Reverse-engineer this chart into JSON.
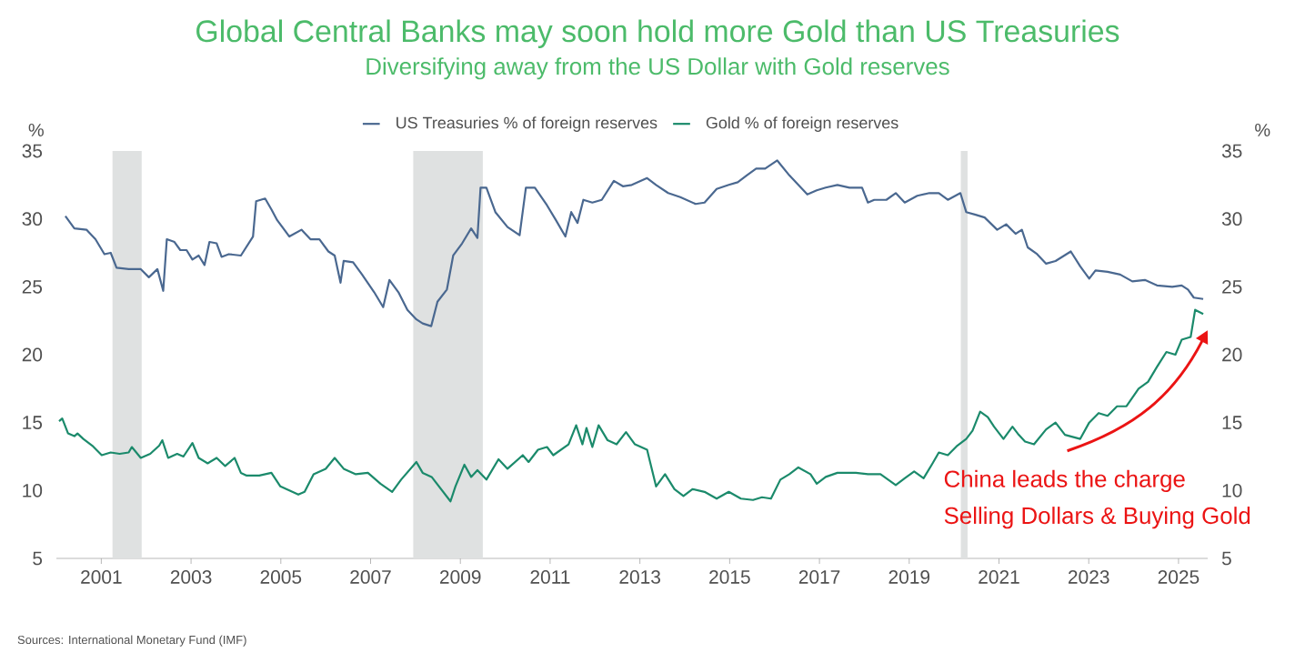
{
  "chart_data": {
    "type": "line",
    "title": "Global Central Banks may soon hold more Gold than US Treasuries",
    "subtitle": "Diversifying away from the US Dollar with Gold reserves",
    "ylabel": "%",
    "y2label": "%",
    "series": [
      {
        "name": "US Treasuries % of foreign reserves",
        "color": "#4a6890",
        "x": [
          2000.2,
          2000.4,
          2000.67,
          2000.87,
          2001.07,
          2001.21,
          2001.34,
          2001.61,
          2001.88,
          2002.06,
          2002.25,
          2002.38,
          2002.46,
          2002.63,
          2002.76,
          2002.9,
          2003.03,
          2003.17,
          2003.3,
          2003.41,
          2003.57,
          2003.68,
          2003.84,
          2004.11,
          2004.38,
          2004.45,
          2004.65,
          2004.79,
          2004.92,
          2005.19,
          2005.46,
          2005.66,
          2005.86,
          2006.06,
          2006.2,
          2006.33,
          2006.4,
          2006.61,
          2006.81,
          2007.08,
          2007.28,
          2007.42,
          2007.62,
          2007.82,
          2008.02,
          2008.16,
          2008.35,
          2008.49,
          2008.7,
          2008.84,
          2009.04,
          2009.24,
          2009.38,
          2009.45,
          2009.58,
          2009.78,
          2010.05,
          2010.32,
          2010.46,
          2010.66,
          2010.93,
          2011.13,
          2011.34,
          2011.47,
          2011.61,
          2011.74,
          2011.94,
          2012.15,
          2012.42,
          2012.62,
          2012.82,
          2013.16,
          2013.36,
          2013.63,
          2013.9,
          2014.24,
          2014.44,
          2014.71,
          2014.98,
          2015.18,
          2015.38,
          2015.59,
          2015.79,
          2016.06,
          2016.33,
          2016.73,
          2016.94,
          2017.14,
          2017.4,
          2017.67,
          2017.95,
          2018.08,
          2018.22,
          2018.49,
          2018.7,
          2018.9,
          2019.18,
          2019.45,
          2019.66,
          2019.86,
          2020.14,
          2020.27,
          2020.48,
          2020.68,
          2020.96,
          2021.16,
          2021.37,
          2021.51,
          2021.64,
          2021.85,
          2022.05,
          2022.26,
          2022.6,
          2022.81,
          2023.01,
          2023.15,
          2023.42,
          2023.7,
          2023.97,
          2024.25,
          2024.52,
          2024.86,
          2025.07,
          2025.21,
          2025.34,
          2025.55
        ],
        "values": [
          30.2,
          29.3,
          29.2,
          28.5,
          27.4,
          27.5,
          26.4,
          26.3,
          26.3,
          25.7,
          26.3,
          24.7,
          28.5,
          28.3,
          27.7,
          27.7,
          27.0,
          27.3,
          26.6,
          28.3,
          28.2,
          27.2,
          27.4,
          27.3,
          28.7,
          31.3,
          31.5,
          30.7,
          29.9,
          28.7,
          29.2,
          28.5,
          28.5,
          27.6,
          27.3,
          25.3,
          26.9,
          26.8,
          25.9,
          24.6,
          23.5,
          25.5,
          24.6,
          23.3,
          22.6,
          22.3,
          22.1,
          23.9,
          24.8,
          27.3,
          28.2,
          29.3,
          28.6,
          32.3,
          32.3,
          30.5,
          29.4,
          28.8,
          32.3,
          32.3,
          31.0,
          29.9,
          28.7,
          30.5,
          29.7,
          31.4,
          31.2,
          31.4,
          32.8,
          32.4,
          32.5,
          33.0,
          32.5,
          31.9,
          31.6,
          31.1,
          31.2,
          32.2,
          32.5,
          32.7,
          33.2,
          33.7,
          33.7,
          34.3,
          33.2,
          31.8,
          32.1,
          32.3,
          32.5,
          32.3,
          32.3,
          31.2,
          31.4,
          31.4,
          31.9,
          31.2,
          31.7,
          31.9,
          31.9,
          31.4,
          31.9,
          30.5,
          30.3,
          30.1,
          29.2,
          29.6,
          28.9,
          29.2,
          27.9,
          27.4,
          26.7,
          26.9,
          27.6,
          26.5,
          25.6,
          26.2,
          26.1,
          25.9,
          25.4,
          25.5,
          25.1,
          25.0,
          25.1,
          24.8,
          24.2,
          24.1
        ]
      },
      {
        "name": "Gold % of foreign reserves",
        "color": "#1b8a6b",
        "x": [
          2000.06,
          2000.13,
          2000.26,
          2000.4,
          2000.47,
          2000.6,
          2000.8,
          2001.01,
          2001.21,
          2001.41,
          2001.61,
          2001.68,
          2001.88,
          2002.09,
          2002.29,
          2002.36,
          2002.49,
          2002.69,
          2002.83,
          2003.03,
          2003.17,
          2003.37,
          2003.57,
          2003.76,
          2003.97,
          2004.11,
          2004.24,
          2004.52,
          2004.79,
          2004.99,
          2005.19,
          2005.39,
          2005.53,
          2005.73,
          2006.0,
          2006.2,
          2006.4,
          2006.67,
          2006.94,
          2007.22,
          2007.48,
          2007.68,
          2008.02,
          2008.16,
          2008.36,
          2008.57,
          2008.78,
          2008.89,
          2009.09,
          2009.24,
          2009.38,
          2009.58,
          2009.85,
          2010.05,
          2010.39,
          2010.52,
          2010.73,
          2010.93,
          2011.07,
          2011.41,
          2011.58,
          2011.72,
          2011.81,
          2011.94,
          2012.08,
          2012.28,
          2012.48,
          2012.69,
          2012.89,
          2013.16,
          2013.36,
          2013.56,
          2013.77,
          2013.97,
          2014.17,
          2014.44,
          2014.71,
          2014.98,
          2015.25,
          2015.52,
          2015.72,
          2015.92,
          2016.13,
          2016.33,
          2016.53,
          2016.8,
          2016.94,
          2017.14,
          2017.4,
          2017.81,
          2018.08,
          2018.36,
          2018.7,
          2018.9,
          2019.11,
          2019.32,
          2019.52,
          2019.66,
          2019.86,
          2020.07,
          2020.27,
          2020.41,
          2020.58,
          2020.75,
          2020.89,
          2021.1,
          2021.3,
          2021.44,
          2021.58,
          2021.78,
          2022.05,
          2022.26,
          2022.47,
          2022.81,
          2023.01,
          2023.22,
          2023.42,
          2023.63,
          2023.84,
          2024.11,
          2024.32,
          2024.52,
          2024.73,
          2024.93,
          2025.07,
          2025.27,
          2025.37,
          2025.55
        ],
        "values": [
          15.1,
          15.3,
          14.2,
          14.0,
          14.2,
          13.8,
          13.3,
          12.6,
          12.8,
          12.7,
          12.8,
          13.2,
          12.4,
          12.7,
          13.3,
          13.7,
          12.4,
          12.7,
          12.5,
          13.5,
          12.4,
          12.0,
          12.4,
          11.8,
          12.4,
          11.3,
          11.1,
          11.1,
          11.3,
          10.3,
          10.0,
          9.7,
          9.9,
          11.2,
          11.6,
          12.4,
          11.6,
          11.2,
          11.3,
          10.5,
          9.9,
          10.8,
          12.1,
          11.3,
          11.0,
          10.1,
          9.2,
          10.3,
          11.9,
          11.0,
          11.5,
          10.8,
          12.3,
          11.6,
          12.6,
          12.1,
          13.0,
          13.2,
          12.6,
          13.4,
          14.8,
          13.4,
          14.6,
          13.2,
          14.8,
          13.7,
          13.4,
          14.3,
          13.4,
          13.0,
          10.3,
          11.2,
          10.1,
          9.6,
          10.1,
          9.9,
          9.4,
          9.9,
          9.4,
          9.3,
          9.5,
          9.4,
          10.8,
          11.2,
          11.7,
          11.2,
          10.5,
          11.0,
          11.3,
          11.3,
          11.2,
          11.2,
          10.4,
          10.9,
          11.4,
          10.9,
          12.0,
          12.8,
          12.6,
          13.3,
          13.8,
          14.4,
          15.8,
          15.4,
          14.7,
          13.8,
          14.7,
          14.1,
          13.6,
          13.4,
          14.5,
          15.0,
          14.1,
          13.8,
          15.0,
          15.7,
          15.5,
          16.2,
          16.2,
          17.5,
          18.0,
          19.1,
          20.2,
          20.0,
          21.1,
          21.3,
          23.3,
          23.0
        ]
      }
    ],
    "xlim": [
      2000,
      2025.65
    ],
    "xticks": [
      2001,
      2003,
      2005,
      2007,
      2009,
      2011,
      2013,
      2015,
      2017,
      2019,
      2021,
      2023,
      2025
    ],
    "ylim": [
      5,
      35
    ],
    "yticks": [
      5,
      10,
      15,
      20,
      25,
      30,
      35
    ],
    "y2lim": [
      5,
      35
    ],
    "y2ticks": [
      5,
      10,
      15,
      20,
      25,
      30,
      35
    ],
    "bands": [
      {
        "axis": "x",
        "from": 2001.25,
        "to": 2001.9,
        "color": "#dfe1e1"
      },
      {
        "axis": "x",
        "from": 2007.95,
        "to": 2009.5,
        "color": "#dfe1e1"
      },
      {
        "axis": "x",
        "from": 2020.15,
        "to": 2020.3,
        "color": "#dfe1e1"
      }
    ],
    "annotations": [
      "China leads the charge",
      "Selling Dollars & Buying Gold",
      "Sources: International Monetary Fund (IMF)"
    ],
    "legend": "top",
    "grid": false,
    "marker": "none",
    "line_style": "solid"
  }
}
